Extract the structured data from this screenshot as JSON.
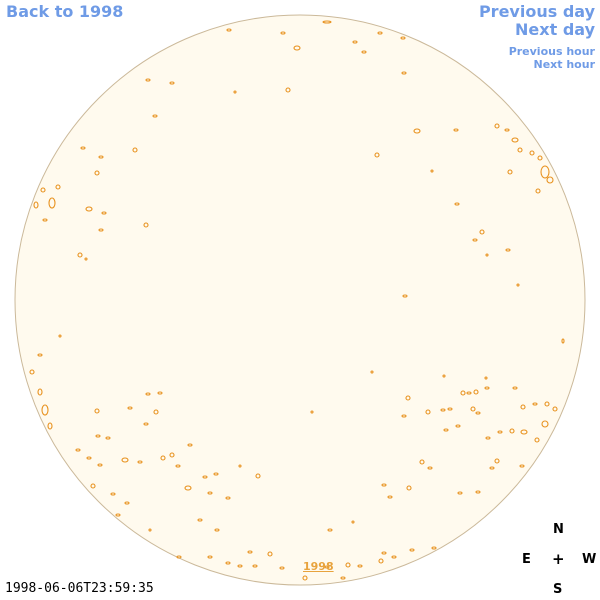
{
  "navigation": {
    "back_label": "Back to 1998",
    "previous_day_label": "Previous day",
    "next_day_label": "Next day",
    "previous_hour_label": "Previous hour",
    "next_hour_label": "Next hour"
  },
  "disk": {
    "year_label": "1998",
    "fill_color": "#fffaee",
    "outline_color": "#cbb99a",
    "feature_color": "#e8921f"
  },
  "timestamp": "1998-06-06T23:59:35",
  "compass": {
    "north": "N",
    "east": "E",
    "center": "+",
    "west": "W",
    "south": "S"
  },
  "link_color": "#6f9be6"
}
